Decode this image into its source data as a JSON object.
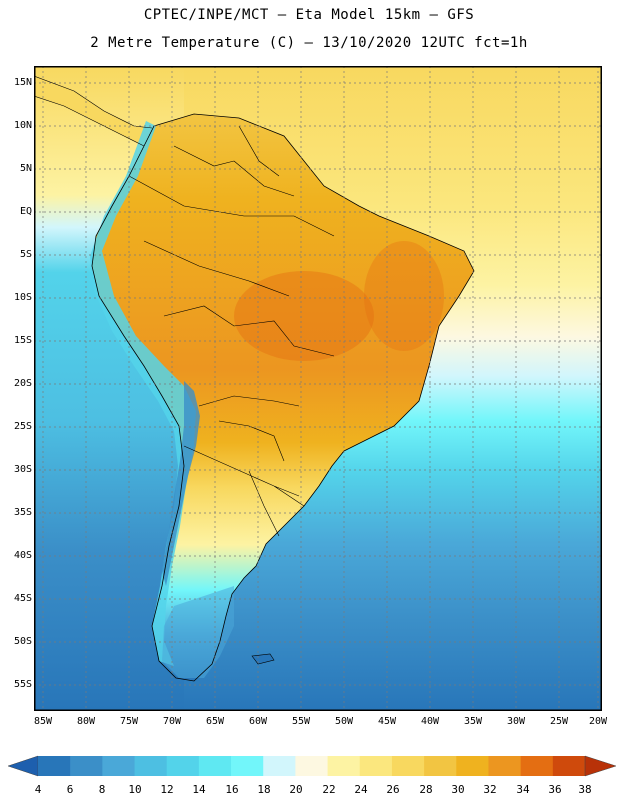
{
  "header": {
    "line1": "CPTEC/INPE/MCT —  Eta Model 15km — GFS",
    "line2": "2 Metre Temperature (C) — 13/10/2020 12UTC fct=1h"
  },
  "axes": {
    "lat_labels": [
      "15N",
      "10N",
      "5N",
      "EQ",
      "5S",
      "10S",
      "15S",
      "20S",
      "25S",
      "30S",
      "35S",
      "40S",
      "45S",
      "50S",
      "55S"
    ],
    "lon_labels": [
      "85W",
      "80W",
      "75W",
      "70W",
      "65W",
      "60W",
      "55W",
      "50W",
      "45W",
      "40W",
      "35W",
      "30W",
      "25W",
      "20W"
    ]
  },
  "colorbar": {
    "labels": [
      "4",
      "6",
      "8",
      "10",
      "12",
      "14",
      "16",
      "18",
      "20",
      "22",
      "24",
      "26",
      "28",
      "30",
      "32",
      "34",
      "36",
      "38"
    ],
    "colors": [
      "#1d5fae",
      "#2876b9",
      "#3b8fc8",
      "#4aa8d8",
      "#4dbfe2",
      "#53d3ea",
      "#5fe8f2",
      "#72f6fa",
      "#d2f6fc",
      "#fdf8e1",
      "#fdf3a3",
      "#fbe77e",
      "#f8d85f",
      "#f2c542",
      "#efb21f",
      "#ec9620",
      "#e46e12",
      "#cf4a0c",
      "#b83208"
    ]
  }
}
